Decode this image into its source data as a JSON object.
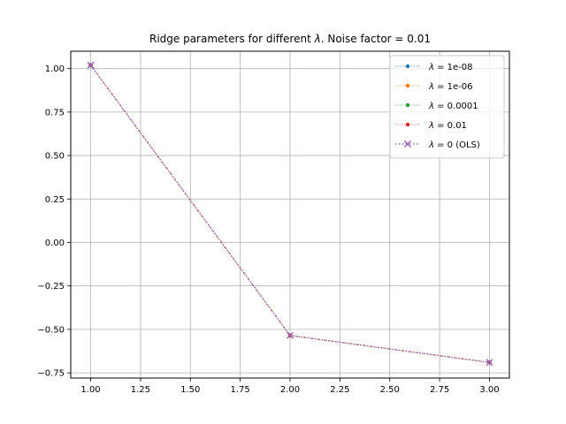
{
  "chart_data": {
    "type": "line",
    "title_prefix": "Ridge parameters for different ",
    "title_symbol": "λ",
    "title_suffix": ". Noise factor = 0.01",
    "xlabel": "",
    "ylabel": "",
    "xlim": [
      0.9,
      3.1
    ],
    "ylim": [
      -0.78,
      1.1
    ],
    "xticks": [
      "1.00",
      "1.25",
      "1.50",
      "1.75",
      "2.00",
      "2.25",
      "2.50",
      "2.75",
      "3.00"
    ],
    "yticks": [
      "−0.75",
      "−0.50",
      "−0.25",
      "0.00",
      "0.25",
      "0.50",
      "0.75",
      "1.00"
    ],
    "grid": true,
    "legend_position": "top-right",
    "x": [
      1,
      2,
      3
    ],
    "series": [
      {
        "name": "= 1e-08",
        "values": [
          1.02,
          -0.535,
          -0.69
        ],
        "color": "#1f77b4",
        "marker": "dot",
        "line": "dotted"
      },
      {
        "name": "= 1e-06",
        "values": [
          1.02,
          -0.535,
          -0.69
        ],
        "color": "#ff7f0e",
        "marker": "dot",
        "line": "dotted"
      },
      {
        "name": "= 0.0001",
        "values": [
          1.02,
          -0.535,
          -0.69
        ],
        "color": "#2ca02c",
        "marker": "dot",
        "line": "dotted"
      },
      {
        "name": "= 0.01",
        "values": [
          1.02,
          -0.535,
          -0.69
        ],
        "color": "#d62728",
        "marker": "dot",
        "line": "dotted"
      },
      {
        "name": "= 0 (OLS)",
        "values": [
          1.02,
          -0.535,
          -0.69
        ],
        "color": "#9467bd",
        "marker": "x",
        "line": "dotted"
      }
    ],
    "legend_symbol": "λ"
  }
}
